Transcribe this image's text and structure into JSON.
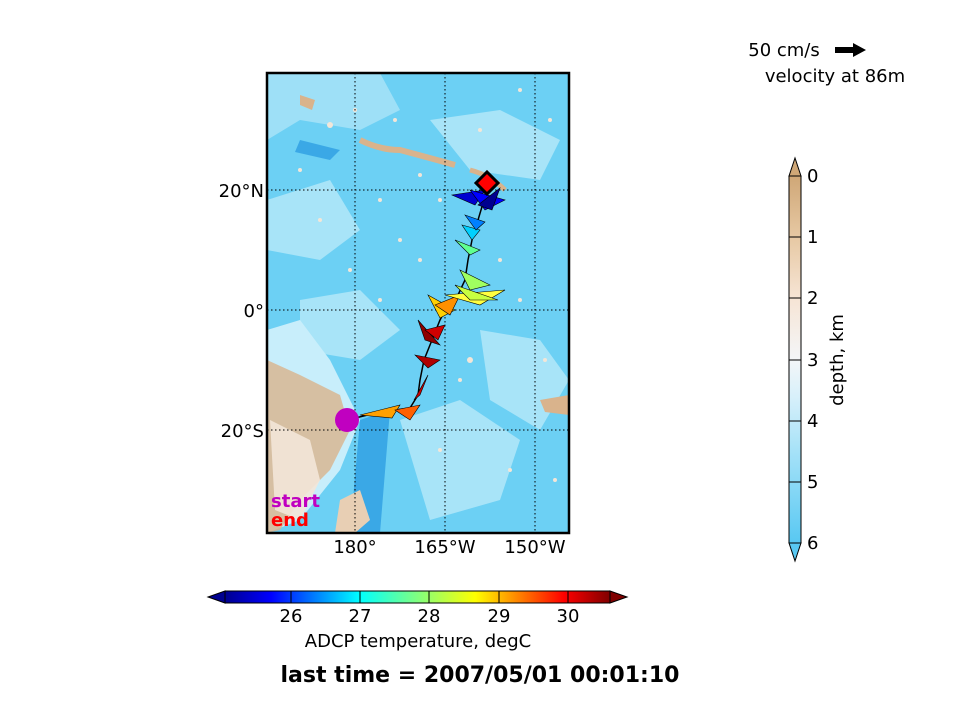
{
  "map": {
    "lat_labels": [
      "20°N",
      "0°",
      "20°S"
    ],
    "lon_labels": [
      "180°",
      "165°W",
      "150°W"
    ],
    "start_label": "start",
    "end_label": "end",
    "start_color": "#c000c0",
    "end_color": "#ff0000",
    "ocean_color": "#6cd0f4",
    "land_color": "#d9b38c"
  },
  "velocity_key": {
    "label": "50 cm/s",
    "caption": "velocity at 86m"
  },
  "depth_colorbar": {
    "label": "depth, km",
    "ticks": [
      "0",
      "1",
      "2",
      "3",
      "4",
      "5",
      "6"
    ]
  },
  "temp_colorbar": {
    "label": "ADCP temperature, degC",
    "ticks": [
      "26",
      "27",
      "28",
      "29",
      "30"
    ]
  },
  "footer": {
    "last_time": "last time = 2007/05/01 00:01:10"
  }
}
